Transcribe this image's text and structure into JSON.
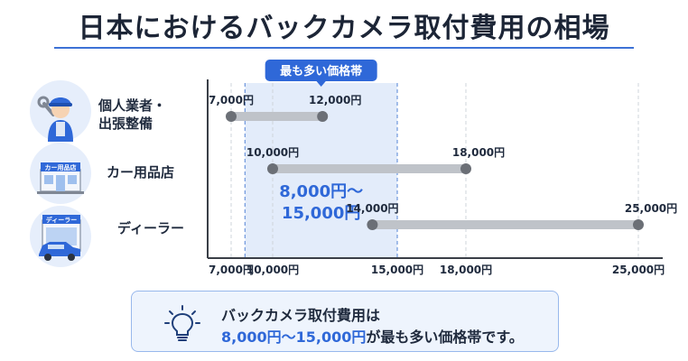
{
  "title": "日本におけるバックカメラ取付費用の相場",
  "highlight": {
    "badge": "最も多い価格帯",
    "range_line1": "8,000円〜",
    "range_line2": "15,000円"
  },
  "rows": [
    {
      "label_line1": "個人業者・",
      "label_line2": "出張整備",
      "icon": "mechanic-icon",
      "min": 7000,
      "max": 12000,
      "min_label": "7,000円",
      "max_label": "12,000円"
    },
    {
      "label_line1": "カー用品店",
      "label_line2": "",
      "icon": "car-parts-store-icon",
      "store_sign": "カー用品店",
      "min": 10000,
      "max": 18000,
      "min_label": "10,000円",
      "max_label": "18,000円"
    },
    {
      "label_line1": "ディーラー",
      "label_line2": "",
      "icon": "car-dealer-icon",
      "store_sign": "ディーラー",
      "min": 14000,
      "max": 25000,
      "min_label": "14,000円",
      "max_label": "25,000円"
    }
  ],
  "summary": {
    "line1": "バックカメラ取付費用は",
    "line2_highlight": "8,000円〜15,000円",
    "line2_rest": "が最も多い価格帯です。",
    "icon": "lightbulb-icon"
  },
  "colors": {
    "accent": "#2f68d8",
    "bar": "#bfc3c9",
    "dot": "#6b6f76",
    "band": "#e3ecfa"
  },
  "chart_data": {
    "type": "range-bar",
    "categories": [
      "個人業者・出張整備",
      "カー用品店",
      "ディーラー"
    ],
    "series": [
      {
        "values": [
          [
            7000,
            12000
          ],
          [
            10000,
            18000
          ],
          [
            14000,
            25000
          ]
        ]
      }
    ],
    "x_ticks": [
      7000,
      10000,
      15000,
      18000,
      25000
    ],
    "x_tick_labels": [
      "7,000円",
      "10,000円",
      "15,000円",
      "18,000円",
      "25,000円"
    ],
    "highlight_range": [
      8000,
      15000
    ],
    "highlight_label": "最も多い価格帯",
    "grid": "vertical dashed at ticks"
  }
}
